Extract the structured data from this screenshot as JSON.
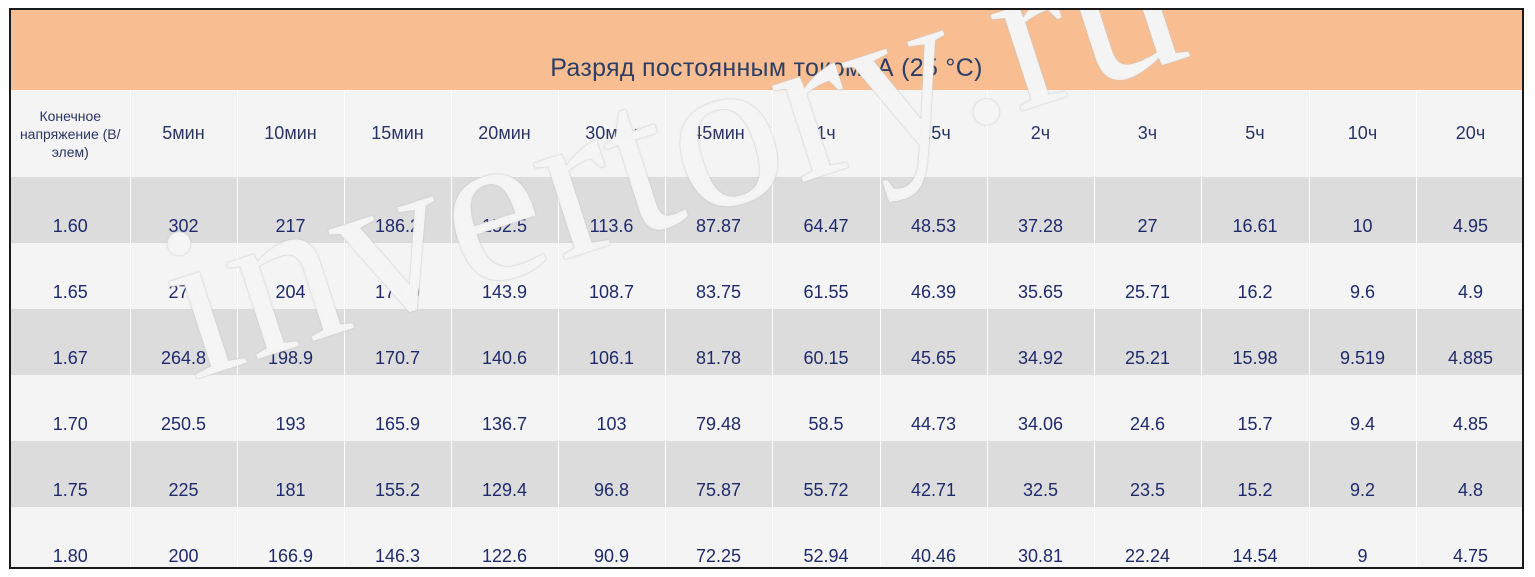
{
  "title": "Разряд постоянным током: А (25 °C)",
  "header": {
    "first": "Конечное напряжение (В/элем)",
    "columns": [
      "5мин",
      "10мин",
      "15мин",
      "20мин",
      "30мин",
      "45мин",
      "1ч",
      "1.5ч",
      "2ч",
      "3ч",
      "5ч",
      "10ч",
      "20ч"
    ]
  },
  "rows": [
    {
      "voltage": "1.60",
      "values": [
        "302",
        "217",
        "186.2",
        "152.5",
        "113.6",
        "87.87",
        "64.47",
        "48.53",
        "37.28",
        "27",
        "16.61",
        "10",
        "4.95"
      ]
    },
    {
      "voltage": "1.65",
      "values": [
        "278",
        "204",
        "174.9",
        "143.9",
        "108.7",
        "83.75",
        "61.55",
        "46.39",
        "35.65",
        "25.71",
        "16.2",
        "9.6",
        "4.9"
      ]
    },
    {
      "voltage": "1.67",
      "values": [
        "264.8",
        "198.9",
        "170.7",
        "140.6",
        "106.1",
        "81.78",
        "60.15",
        "45.65",
        "34.92",
        "25.21",
        "15.98",
        "9.519",
        "4.885"
      ]
    },
    {
      "voltage": "1.70",
      "values": [
        "250.5",
        "193",
        "165.9",
        "136.7",
        "103",
        "79.48",
        "58.5",
        "44.73",
        "34.06",
        "24.6",
        "15.7",
        "9.4",
        "4.85"
      ]
    },
    {
      "voltage": "1.75",
      "values": [
        "225",
        "181",
        "155.2",
        "129.4",
        "96.8",
        "75.87",
        "55.72",
        "42.71",
        "32.5",
        "23.5",
        "15.2",
        "9.2",
        "4.8"
      ]
    },
    {
      "voltage": "1.80",
      "values": [
        "200",
        "166.9",
        "146.3",
        "122.6",
        "90.9",
        "72.25",
        "52.94",
        "40.46",
        "30.81",
        "22.24",
        "14.54",
        "9",
        "4.75"
      ]
    }
  ],
  "watermark": "invertory.ru",
  "colors": {
    "title_bg": "#f8be92",
    "text": "#1f2a6b",
    "row_dark": "#dcdcdc",
    "row_light": "#f4f4f4"
  }
}
